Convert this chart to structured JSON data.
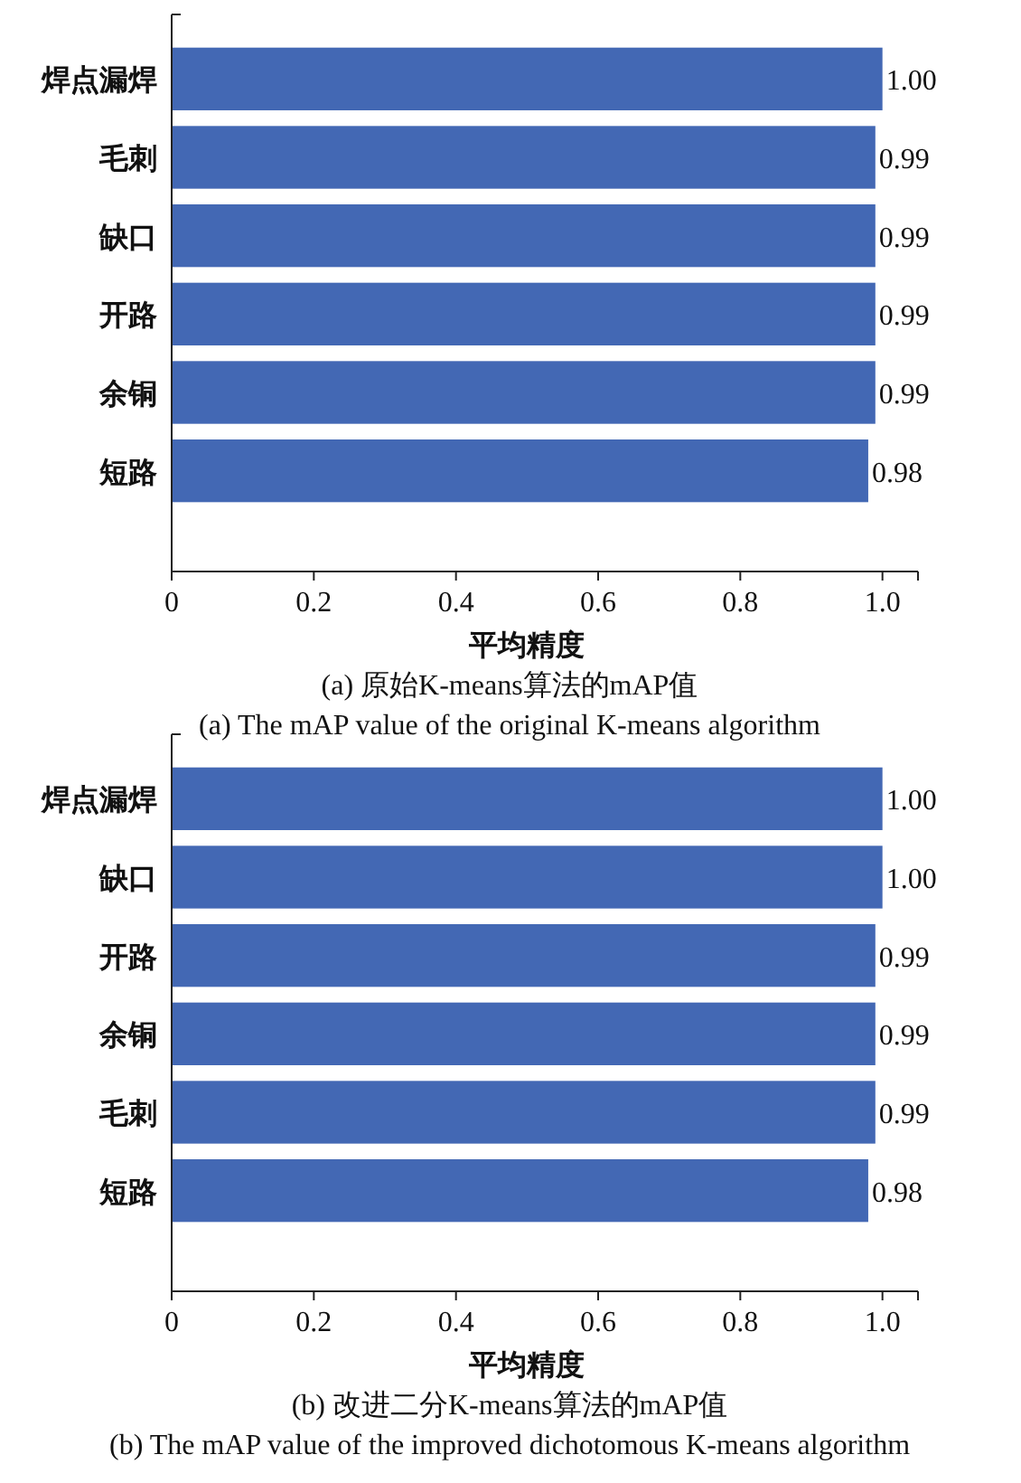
{
  "chart_data": [
    {
      "type": "bar",
      "orientation": "horizontal",
      "categories": [
        "焊点漏焊",
        "毛刺",
        "缺口",
        "开路",
        "余铜",
        "短路"
      ],
      "values": [
        1.0,
        0.99,
        0.99,
        0.99,
        0.99,
        0.98
      ],
      "value_labels": [
        "1.00",
        "0.99",
        "0.99",
        "0.99",
        "0.99",
        "0.98"
      ],
      "color": "#4368b4",
      "xlim": [
        0,
        1.05
      ],
      "xticks": [
        0,
        0.2,
        0.4,
        0.6,
        0.8,
        {
          "value": 1,
          "label": "1.0"
        }
      ],
      "xlabel": "平均精度",
      "annotations": [
        "(a) 原始K-means算法的mAP值",
        "(a) The mAP value of the original K-means algorithm"
      ]
    },
    {
      "type": "bar",
      "orientation": "horizontal",
      "categories": [
        "焊点漏焊",
        "缺口",
        "开路",
        "余铜",
        "毛刺",
        "短路"
      ],
      "values": [
        1.0,
        1.0,
        0.99,
        0.99,
        0.99,
        0.98
      ],
      "value_labels": [
        "1.00",
        "1.00",
        "0.99",
        "0.99",
        "0.99",
        "0.98"
      ],
      "color": "#4368b4",
      "xlim": [
        0,
        1.05
      ],
      "xticks": [
        0,
        0.2,
        0.4,
        0.6,
        0.8,
        {
          "value": 1,
          "label": "1.0"
        }
      ],
      "xlabel": "平均精度",
      "annotations": [
        "(b) 改进二分K-means算法的mAP值",
        "(b) The mAP value of the improved dichotomous K-means algorithm"
      ]
    }
  ]
}
